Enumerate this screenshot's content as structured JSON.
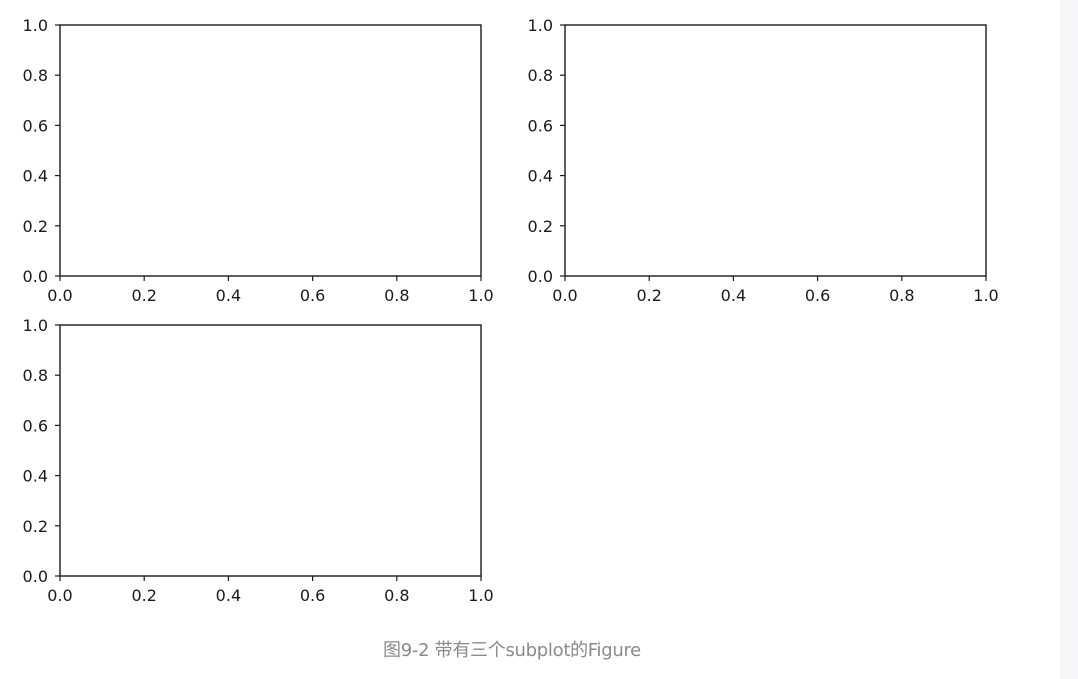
{
  "figure": {
    "caption": "图9-2 带有三个subplot的Figure"
  },
  "chart_data": [
    {
      "type": "line",
      "title": "",
      "xlabel": "",
      "ylabel": "",
      "xlim": [
        0.0,
        1.0
      ],
      "ylim": [
        0.0,
        1.0
      ],
      "x_ticks": [
        "0.0",
        "0.2",
        "0.4",
        "0.6",
        "0.8",
        "1.0"
      ],
      "y_ticks": [
        "0.0",
        "0.2",
        "0.4",
        "0.6",
        "0.8",
        "1.0"
      ],
      "grid": false,
      "series": []
    },
    {
      "type": "line",
      "title": "",
      "xlabel": "",
      "ylabel": "",
      "xlim": [
        0.0,
        1.0
      ],
      "ylim": [
        0.0,
        1.0
      ],
      "x_ticks": [
        "0.0",
        "0.2",
        "0.4",
        "0.6",
        "0.8",
        "1.0"
      ],
      "y_ticks": [
        "0.0",
        "0.2",
        "0.4",
        "0.6",
        "0.8",
        "1.0"
      ],
      "grid": false,
      "series": []
    },
    {
      "type": "line",
      "title": "",
      "xlabel": "",
      "ylabel": "",
      "xlim": [
        0.0,
        1.0
      ],
      "ylim": [
        0.0,
        1.0
      ],
      "x_ticks": [
        "0.0",
        "0.2",
        "0.4",
        "0.6",
        "0.8",
        "1.0"
      ],
      "y_ticks": [
        "0.0",
        "0.2",
        "0.4",
        "0.6",
        "0.8",
        "1.0"
      ],
      "grid": false,
      "series": []
    }
  ]
}
